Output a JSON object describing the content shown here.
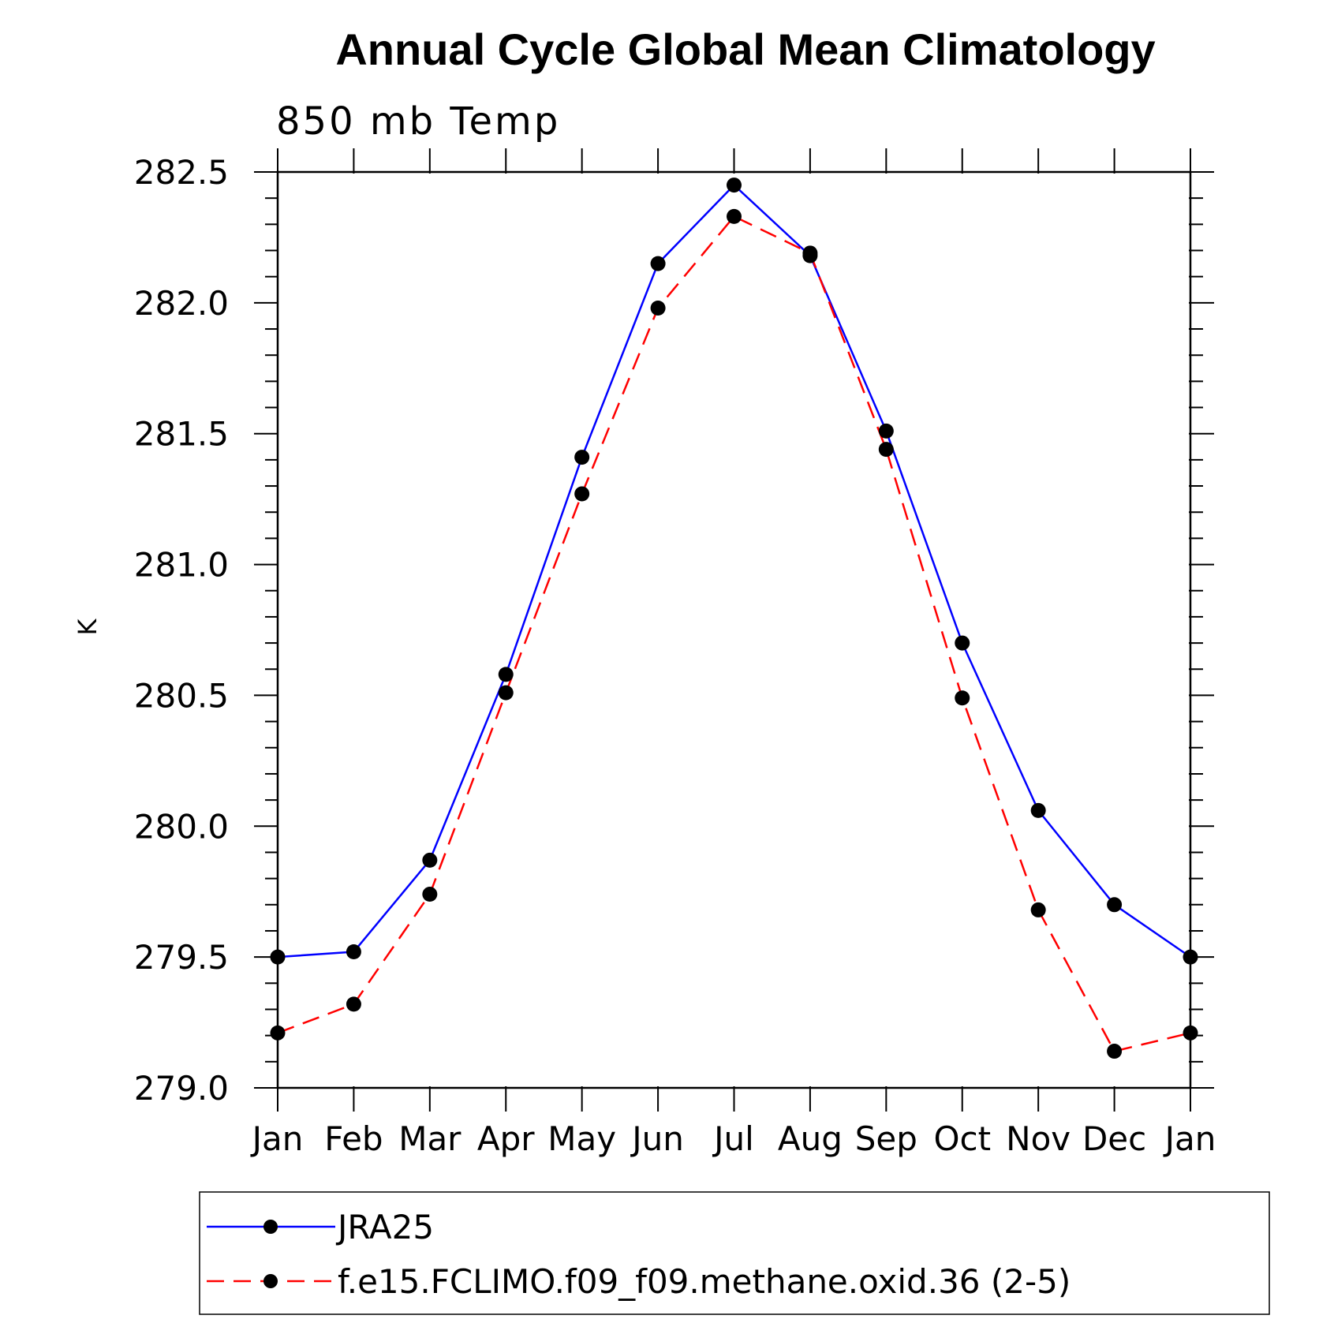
{
  "chart_data": {
    "type": "line",
    "title": "Annual Cycle Global Mean Climatology",
    "subtitle": "850 mb Temp",
    "xlabel": "",
    "ylabel": "K",
    "categories": [
      "Jan",
      "Feb",
      "Mar",
      "Apr",
      "May",
      "Jun",
      "Jul",
      "Aug",
      "Sep",
      "Oct",
      "Nov",
      "Dec",
      "Jan"
    ],
    "ylim": [
      279.0,
      282.5
    ],
    "yticks": [
      "279.0",
      "279.5",
      "280.0",
      "280.5",
      "281.0",
      "281.5",
      "282.0",
      "282.5"
    ],
    "series": [
      {
        "name": "JRA25",
        "color": "#0000ff",
        "dash": "solid",
        "values": [
          279.5,
          279.52,
          279.87,
          280.58,
          281.41,
          282.15,
          282.45,
          282.18,
          281.51,
          280.7,
          280.06,
          279.7,
          279.5
        ]
      },
      {
        "name": "f.e15.FCLIMO.f09_f09.methane.oxid.36 (2-5)",
        "color": "#ff0000",
        "dash": "dashed",
        "values": [
          279.21,
          279.32,
          279.74,
          280.51,
          281.27,
          281.98,
          282.33,
          282.19,
          281.44,
          280.49,
          279.68,
          279.14,
          279.21
        ]
      }
    ],
    "legend": {
      "placement": "bottom"
    },
    "grid": false
  }
}
